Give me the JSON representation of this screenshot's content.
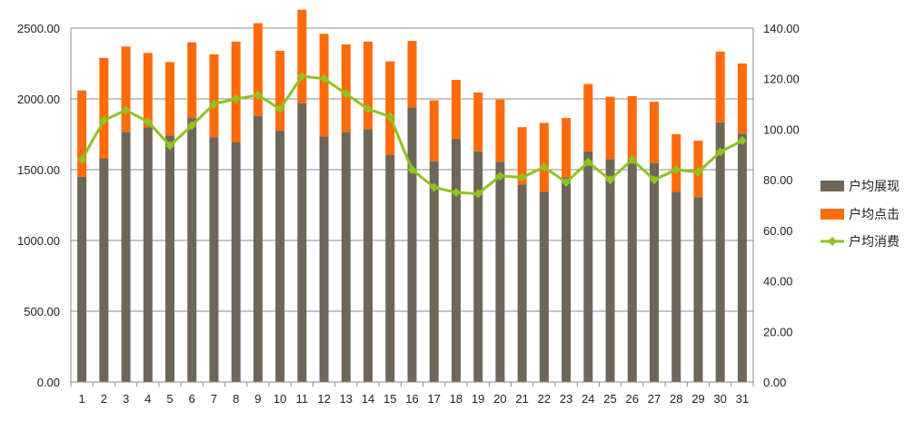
{
  "chart_data": {
    "type": "bar",
    "stacked": true,
    "categories": [
      "1",
      "2",
      "3",
      "4",
      "5",
      "6",
      "7",
      "8",
      "9",
      "10",
      "11",
      "12",
      "13",
      "14",
      "15",
      "16",
      "17",
      "18",
      "19",
      "20",
      "21",
      "22",
      "23",
      "24",
      "25",
      "26",
      "27",
      "28",
      "29",
      "30",
      "31"
    ],
    "series": [
      {
        "name": "户均展现",
        "type": "bar",
        "axis": "left",
        "color": "#6e6658",
        "values": [
          1450,
          1580,
          1765,
          1800,
          1740,
          1865,
          1730,
          1695,
          1880,
          1775,
          1970,
          1735,
          1765,
          1785,
          1605,
          1940,
          1560,
          1720,
          1630,
          1555,
          1395,
          1345,
          1445,
          1630,
          1575,
          1580,
          1545,
          1345,
          1305,
          1835,
          1755
        ]
      },
      {
        "name": "户均点击",
        "type": "bar",
        "axis": "left",
        "color": "#ff6a0a",
        "values": [
          610,
          710,
          605,
          525,
          520,
          535,
          585,
          710,
          655,
          565,
          660,
          725,
          620,
          620,
          660,
          470,
          430,
          415,
          415,
          440,
          405,
          485,
          420,
          475,
          440,
          440,
          435,
          405,
          400,
          500,
          495
        ]
      },
      {
        "name": "户均消费",
        "type": "line",
        "axis": "right",
        "color": "#8fc31f",
        "values": [
          88,
          103.5,
          107.5,
          103,
          93.5,
          101.5,
          110,
          112,
          113.5,
          108,
          121,
          120,
          114,
          108,
          105,
          84,
          77,
          75,
          74.5,
          81.5,
          81,
          85,
          79,
          87,
          80,
          88,
          80,
          84,
          83,
          91,
          95.5
        ]
      }
    ],
    "y_left": {
      "min": 0,
      "max": 2500,
      "ticks": [
        "0.00",
        "500.00",
        "1000.00",
        "1500.00",
        "2000.00",
        "2500.00"
      ]
    },
    "y_right": {
      "min": 0,
      "max": 140,
      "ticks": [
        "0.00",
        "20.00",
        "40.00",
        "60.00",
        "80.00",
        "100.00",
        "120.00",
        "140.00"
      ]
    },
    "grid": true,
    "legend_position": "right",
    "title": "",
    "xlabel": "",
    "ylabel": ""
  }
}
